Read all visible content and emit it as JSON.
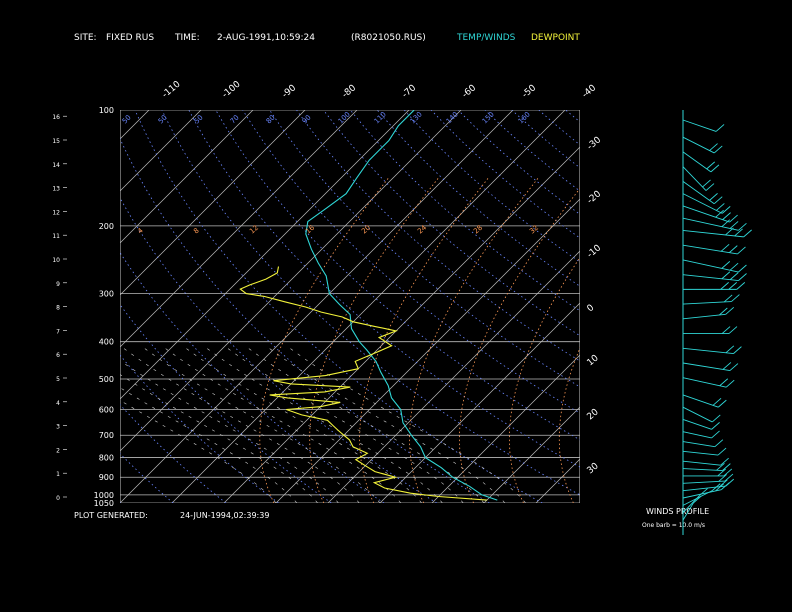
{
  "header": {
    "site_label": "SITE:",
    "site_value": "FIXED RUS",
    "time_label": "TIME:",
    "time_value": "2-AUG-1991,10:59:24",
    "file_id": "(R8021050.RUS)",
    "legend_temp": "TEMP/WINDS",
    "legend_dew": "DEWPOINT"
  },
  "footer": {
    "generated_label": "PLOT GENERATED:",
    "generated_value": "24-JUN-1994,02:39:39"
  },
  "winds_panel": {
    "title": "WINDS PROFILE",
    "barb_note": "One barb = 10.0 m/s"
  },
  "colors": {
    "temp": "#2fd6d6",
    "dewpoint": "#f2f23a",
    "dry_adiabat": "#6a86ff",
    "mixing_ratio": "#ff9a55",
    "isotherm": "#bbbbbb",
    "isobar": "#bbbbbb"
  },
  "chart_data": {
    "type": "line",
    "subtype": "skew-T log-P sounding",
    "pressure_ticks": [
      100,
      200,
      300,
      400,
      500,
      600,
      700,
      800,
      900,
      1000,
      1050
    ],
    "pressure_labels": [
      "100",
      "200",
      "300",
      "400",
      "500",
      "600",
      "700",
      "800",
      "900",
      "1000",
      "1050"
    ],
    "height_ticks_km": [
      0,
      1,
      2,
      3,
      4,
      5,
      6,
      7,
      8,
      9,
      10,
      11,
      12,
      13,
      14,
      15,
      16
    ],
    "temperature_labels_top": [
      "-110",
      "-100",
      "-90",
      "-80",
      "-70",
      "-60",
      "-50",
      "-40"
    ],
    "temperature_labels_right": [
      "-30",
      "-20",
      "-10",
      "0",
      "10",
      "20",
      "30"
    ],
    "isotherms_c": [
      -110,
      -100,
      -90,
      -80,
      -70,
      -60,
      -50,
      -40,
      -30,
      -20,
      -10,
      0,
      10,
      20,
      30,
      40
    ],
    "dry_adiabat_labels": [
      "50",
      "50",
      "50",
      "70",
      "80",
      "90",
      "100",
      "110",
      "130",
      "140",
      "150",
      "160"
    ],
    "mixing_ratio_labels": [
      "4",
      "8",
      "12",
      "16",
      "20",
      "24",
      "28",
      "32"
    ],
    "ylim": [
      1050,
      100
    ],
    "xlim_bottom_c": [
      -40,
      45
    ],
    "series": [
      {
        "name": "TEMP/WINDS",
        "points": [
          [
            1032,
            32
          ],
          [
            1000,
            28
          ],
          [
            950,
            24
          ],
          [
            900,
            19
          ],
          [
            850,
            15
          ],
          [
            800,
            10
          ],
          [
            750,
            7
          ],
          [
            700,
            3
          ],
          [
            650,
            -1
          ],
          [
            600,
            -4
          ],
          [
            560,
            -8
          ],
          [
            520,
            -11
          ],
          [
            480,
            -15
          ],
          [
            450,
            -18
          ],
          [
            420,
            -22
          ],
          [
            400,
            -25
          ],
          [
            370,
            -29
          ],
          [
            340,
            -32
          ],
          [
            320,
            -36
          ],
          [
            300,
            -40
          ],
          [
            270,
            -44
          ],
          [
            250,
            -48
          ],
          [
            230,
            -52
          ],
          [
            210,
            -56
          ],
          [
            195,
            -58
          ],
          [
            180,
            -57
          ],
          [
            165,
            -56
          ],
          [
            150,
            -57
          ],
          [
            135,
            -58
          ],
          [
            120,
            -58
          ],
          [
            110,
            -59
          ],
          [
            100,
            -59
          ]
        ]
      },
      {
        "name": "DEWPOINT",
        "points": [
          [
            1032,
            30
          ],
          [
            1010,
            20
          ],
          [
            990,
            14
          ],
          [
            960,
            8
          ],
          [
            930,
            5
          ],
          [
            900,
            8
          ],
          [
            870,
            3
          ],
          [
            840,
            0
          ],
          [
            810,
            -3
          ],
          [
            780,
            -2
          ],
          [
            750,
            -6
          ],
          [
            720,
            -8
          ],
          [
            700,
            -10
          ],
          [
            680,
            -12
          ],
          [
            660,
            -14
          ],
          [
            640,
            -16
          ],
          [
            620,
            -22
          ],
          [
            600,
            -26
          ],
          [
            590,
            -20
          ],
          [
            575,
            -17
          ],
          [
            560,
            -28
          ],
          [
            550,
            -32
          ],
          [
            540,
            -22
          ],
          [
            525,
            -18
          ],
          [
            515,
            -30
          ],
          [
            505,
            -34
          ],
          [
            490,
            -25
          ],
          [
            470,
            -20
          ],
          [
            450,
            -22
          ],
          [
            430,
            -20
          ],
          [
            410,
            -18
          ],
          [
            390,
            -22
          ],
          [
            375,
            -20
          ],
          [
            365,
            -25
          ],
          [
            355,
            -30
          ],
          [
            345,
            -33
          ],
          [
            335,
            -38
          ],
          [
            325,
            -42
          ],
          [
            315,
            -47
          ],
          [
            305,
            -52
          ],
          [
            300,
            -56
          ],
          [
            292,
            -58
          ],
          [
            285,
            -57
          ],
          [
            275,
            -55
          ],
          [
            265,
            -54
          ],
          [
            255,
            -55
          ]
        ]
      }
    ],
    "winds_profile": {
      "heights_km": [
        0.2,
        0.5,
        0.8,
        1.1,
        1.4,
        1.7,
        2.0,
        2.3,
        2.6,
        3.0,
        3.4,
        3.8,
        4.3,
        4.8,
        5.3,
        6.0,
        6.6,
        7.2,
        7.8,
        8.4,
        9.0,
        9.6,
        10.2,
        10.8,
        11.4,
        12.0,
        12.5,
        13.0,
        13.5,
        14.0,
        14.6,
        15.2,
        15.8,
        16.5
      ],
      "direction_deg": [
        200,
        210,
        230,
        250,
        260,
        265,
        270,
        275,
        280,
        280,
        285,
        290,
        300,
        310,
        300,
        290,
        285,
        280,
        270,
        260,
        265,
        270,
        280,
        290,
        285,
        280,
        290,
        300,
        310,
        320,
        330,
        320,
        310,
        300
      ],
      "speed_ms": [
        8,
        10,
        14,
        16,
        18,
        17,
        16,
        15,
        14,
        12,
        10,
        8,
        10,
        14,
        16,
        20,
        22,
        24,
        20,
        18,
        22,
        26,
        28,
        30,
        28,
        32,
        30,
        26,
        24,
        22,
        20,
        18,
        16,
        14
      ]
    }
  }
}
